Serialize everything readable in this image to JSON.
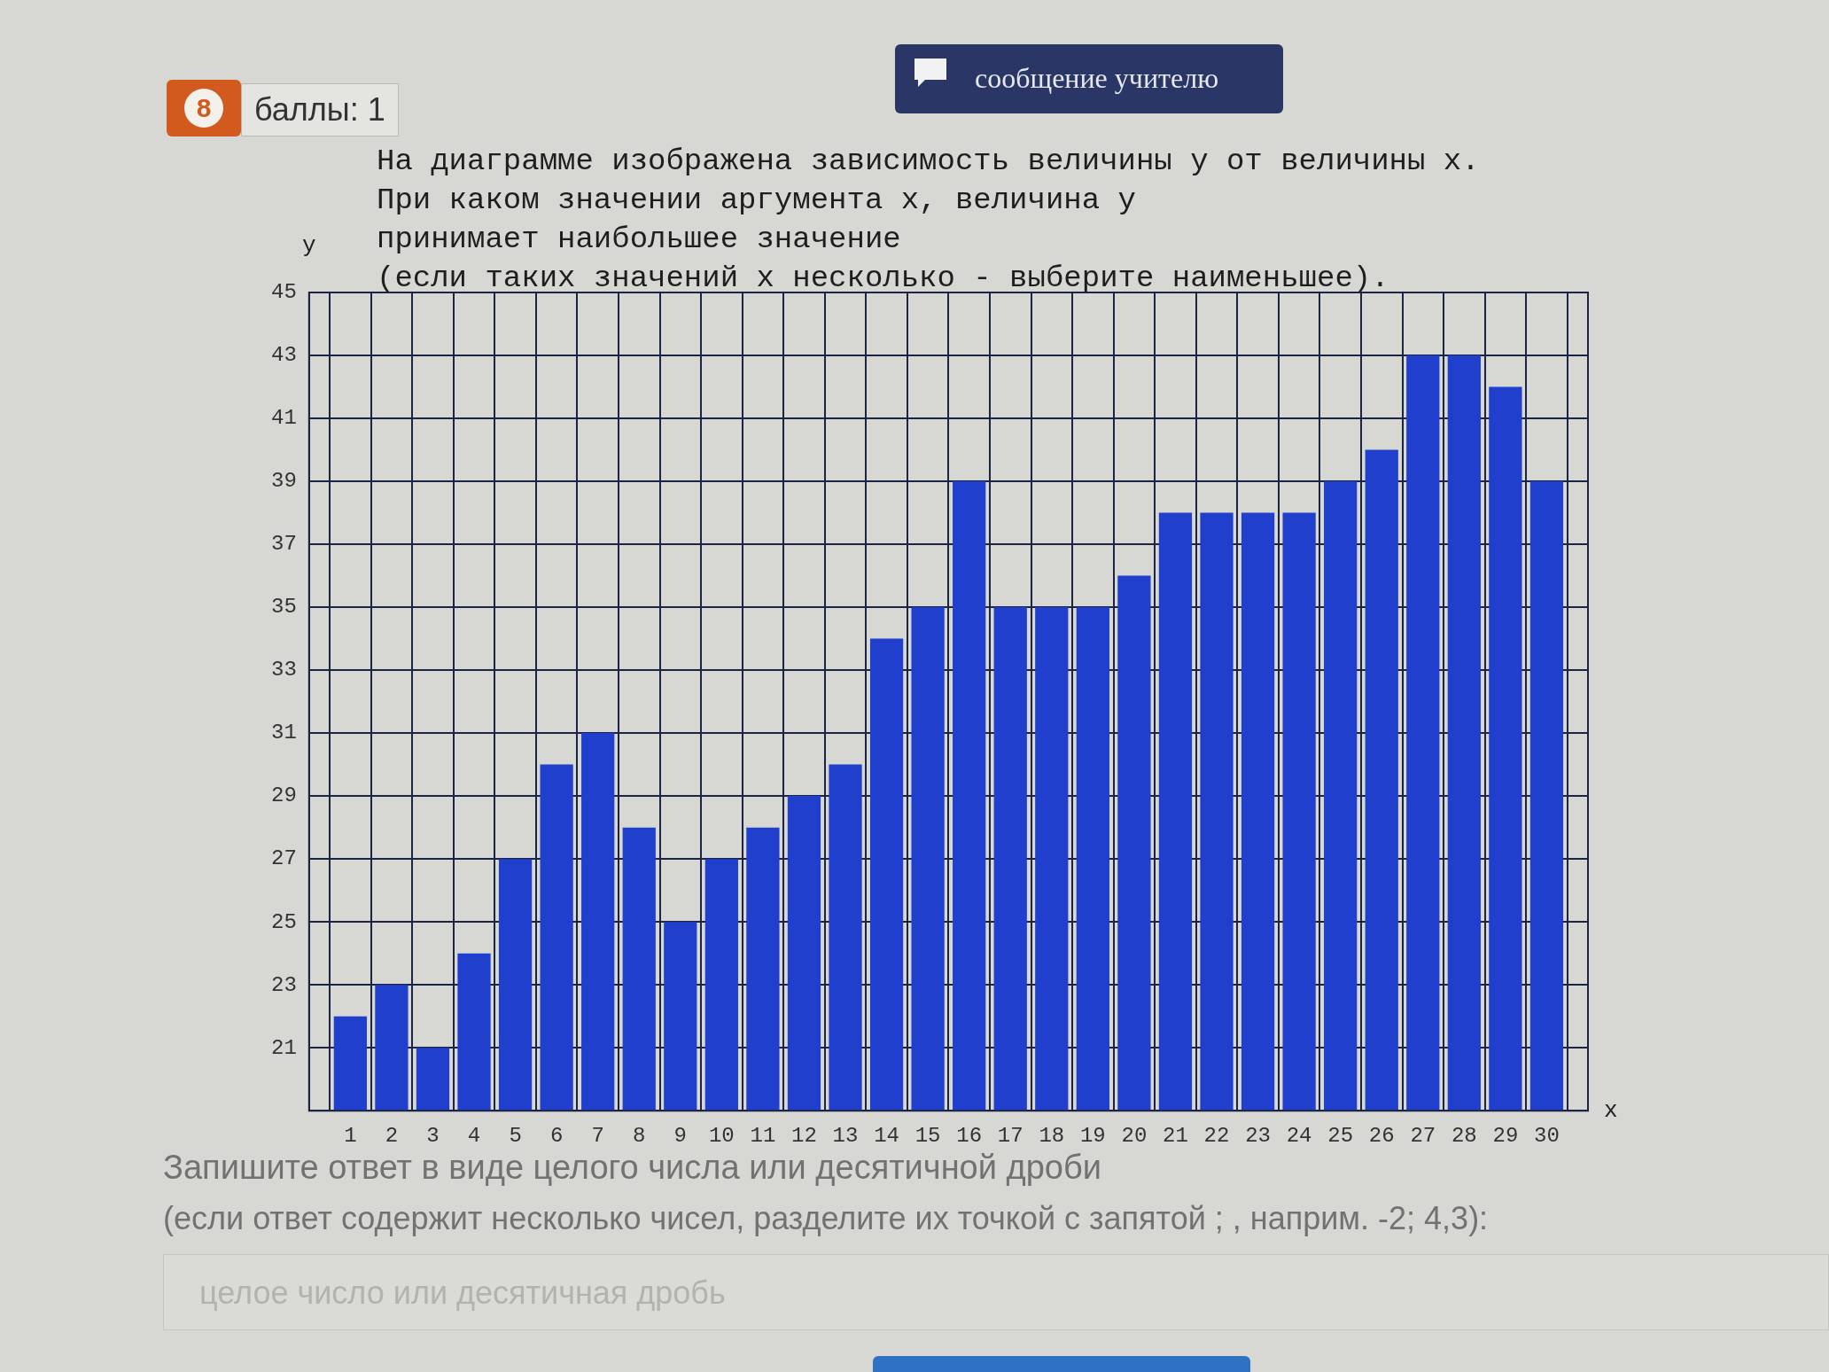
{
  "chart_data": {
    "type": "bar",
    "title": "На диаграмме изображена зависимость величины y от величины x.\nПри каком значении аргумента x, величина y\nпринимает наибольшее значение",
    "subtitle": "(если таких значений x несколько - выберите наименьшее).",
    "xlabel": "x",
    "ylabel": "y",
    "x": [
      1,
      2,
      3,
      4,
      5,
      6,
      7,
      8,
      9,
      10,
      11,
      12,
      13,
      14,
      15,
      16,
      17,
      18,
      19,
      20,
      21,
      22,
      23,
      24,
      25,
      26,
      27,
      28,
      29,
      30
    ],
    "values": [
      22,
      23,
      21,
      24,
      27,
      30,
      31,
      28,
      25,
      27,
      28,
      29,
      30,
      34,
      35,
      39,
      35,
      35,
      35,
      36,
      38,
      38,
      38,
      38,
      39,
      40,
      43,
      43,
      42,
      39
    ],
    "color": "#1f3fcc",
    "xlim": [
      0,
      31
    ],
    "xticks": [
      1,
      2,
      3,
      4,
      5,
      6,
      7,
      8,
      9,
      10,
      11,
      12,
      13,
      14,
      15,
      16,
      17,
      18,
      19,
      20,
      21,
      22,
      23,
      24,
      25,
      26,
      27,
      28,
      29,
      30
    ],
    "ylim": [
      19,
      45
    ],
    "yticks": [
      21,
      23,
      25,
      27,
      29,
      31,
      33,
      35,
      37,
      39,
      41,
      43,
      45
    ],
    "grid": true,
    "annotations": [
      "8",
      "баллы: 1",
      "сообщение учителю",
      "Запишите ответ в виде целого числа или десятичной дроби",
      "(если ответ содержит несколько чисел, разделите их точкой с запятой ; , наприм. -2; 4,3):",
      "целое число или десятичная дробь"
    ]
  }
}
